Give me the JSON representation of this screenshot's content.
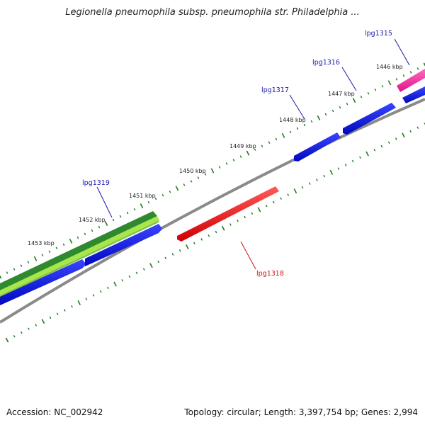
{
  "title": "Legionella pneumophila subsp. pneumophila str. Philadelphia ...",
  "footer": {
    "accession": "Accession: NC_002942",
    "summary": "Topology: circular; Length: 3,397,754 bp; Genes: 2,994"
  },
  "colors": {
    "backbone": "#8a8a8a",
    "blue_gene": "#0a14e6",
    "red_gene": "#ff1010",
    "pink_gene": "#ff2aa0",
    "dark_green_gene": "#2f8a2f",
    "light_green_gene": "#a8e64a",
    "tick": "#1f7a1f",
    "label_blue": "#1a1aa8",
    "label_red": "#cc1010"
  },
  "ruler": [
    {
      "label": "1446 kbp"
    },
    {
      "label": "1447 kbp"
    },
    {
      "label": "1448 kbp"
    },
    {
      "label": "1449 kbp"
    },
    {
      "label": "1450 kbp"
    },
    {
      "label": "1451 kbp"
    },
    {
      "label": "1452 kbp"
    },
    {
      "label": "1453 kbp"
    }
  ],
  "genes": [
    {
      "name": "lpg1315",
      "color": "pink"
    },
    {
      "name": "lpg1316",
      "color": "blue"
    },
    {
      "name": "lpg1317",
      "color": "blue"
    },
    {
      "name": "lpg1318",
      "color": "red"
    },
    {
      "name": "lpg1319",
      "color": "green"
    }
  ]
}
